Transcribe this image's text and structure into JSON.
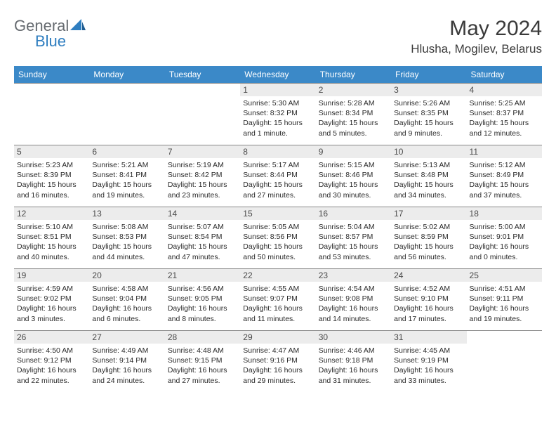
{
  "brand": {
    "name_a": "General",
    "name_b": "Blue"
  },
  "title": "May 2024",
  "location": "Hlusha, Mogilev, Belarus",
  "colors": {
    "header_bg": "#3b89c8",
    "header_text": "#ffffff",
    "daynum_bg": "#ececec",
    "border": "#888888",
    "brand_gray": "#666b70",
    "brand_blue": "#2f7ec0"
  },
  "days_of_week": [
    "Sunday",
    "Monday",
    "Tuesday",
    "Wednesday",
    "Thursday",
    "Friday",
    "Saturday"
  ],
  "leading_blanks": 3,
  "days": [
    {
      "n": 1,
      "sunrise": "5:30 AM",
      "sunset": "8:32 PM",
      "daylight": "15 hours and 1 minute."
    },
    {
      "n": 2,
      "sunrise": "5:28 AM",
      "sunset": "8:34 PM",
      "daylight": "15 hours and 5 minutes."
    },
    {
      "n": 3,
      "sunrise": "5:26 AM",
      "sunset": "8:35 PM",
      "daylight": "15 hours and 9 minutes."
    },
    {
      "n": 4,
      "sunrise": "5:25 AM",
      "sunset": "8:37 PM",
      "daylight": "15 hours and 12 minutes."
    },
    {
      "n": 5,
      "sunrise": "5:23 AM",
      "sunset": "8:39 PM",
      "daylight": "15 hours and 16 minutes."
    },
    {
      "n": 6,
      "sunrise": "5:21 AM",
      "sunset": "8:41 PM",
      "daylight": "15 hours and 19 minutes."
    },
    {
      "n": 7,
      "sunrise": "5:19 AM",
      "sunset": "8:42 PM",
      "daylight": "15 hours and 23 minutes."
    },
    {
      "n": 8,
      "sunrise": "5:17 AM",
      "sunset": "8:44 PM",
      "daylight": "15 hours and 27 minutes."
    },
    {
      "n": 9,
      "sunrise": "5:15 AM",
      "sunset": "8:46 PM",
      "daylight": "15 hours and 30 minutes."
    },
    {
      "n": 10,
      "sunrise": "5:13 AM",
      "sunset": "8:48 PM",
      "daylight": "15 hours and 34 minutes."
    },
    {
      "n": 11,
      "sunrise": "5:12 AM",
      "sunset": "8:49 PM",
      "daylight": "15 hours and 37 minutes."
    },
    {
      "n": 12,
      "sunrise": "5:10 AM",
      "sunset": "8:51 PM",
      "daylight": "15 hours and 40 minutes."
    },
    {
      "n": 13,
      "sunrise": "5:08 AM",
      "sunset": "8:53 PM",
      "daylight": "15 hours and 44 minutes."
    },
    {
      "n": 14,
      "sunrise": "5:07 AM",
      "sunset": "8:54 PM",
      "daylight": "15 hours and 47 minutes."
    },
    {
      "n": 15,
      "sunrise": "5:05 AM",
      "sunset": "8:56 PM",
      "daylight": "15 hours and 50 minutes."
    },
    {
      "n": 16,
      "sunrise": "5:04 AM",
      "sunset": "8:57 PM",
      "daylight": "15 hours and 53 minutes."
    },
    {
      "n": 17,
      "sunrise": "5:02 AM",
      "sunset": "8:59 PM",
      "daylight": "15 hours and 56 minutes."
    },
    {
      "n": 18,
      "sunrise": "5:00 AM",
      "sunset": "9:01 PM",
      "daylight": "16 hours and 0 minutes."
    },
    {
      "n": 19,
      "sunrise": "4:59 AM",
      "sunset": "9:02 PM",
      "daylight": "16 hours and 3 minutes."
    },
    {
      "n": 20,
      "sunrise": "4:58 AM",
      "sunset": "9:04 PM",
      "daylight": "16 hours and 6 minutes."
    },
    {
      "n": 21,
      "sunrise": "4:56 AM",
      "sunset": "9:05 PM",
      "daylight": "16 hours and 8 minutes."
    },
    {
      "n": 22,
      "sunrise": "4:55 AM",
      "sunset": "9:07 PM",
      "daylight": "16 hours and 11 minutes."
    },
    {
      "n": 23,
      "sunrise": "4:54 AM",
      "sunset": "9:08 PM",
      "daylight": "16 hours and 14 minutes."
    },
    {
      "n": 24,
      "sunrise": "4:52 AM",
      "sunset": "9:10 PM",
      "daylight": "16 hours and 17 minutes."
    },
    {
      "n": 25,
      "sunrise": "4:51 AM",
      "sunset": "9:11 PM",
      "daylight": "16 hours and 19 minutes."
    },
    {
      "n": 26,
      "sunrise": "4:50 AM",
      "sunset": "9:12 PM",
      "daylight": "16 hours and 22 minutes."
    },
    {
      "n": 27,
      "sunrise": "4:49 AM",
      "sunset": "9:14 PM",
      "daylight": "16 hours and 24 minutes."
    },
    {
      "n": 28,
      "sunrise": "4:48 AM",
      "sunset": "9:15 PM",
      "daylight": "16 hours and 27 minutes."
    },
    {
      "n": 29,
      "sunrise": "4:47 AM",
      "sunset": "9:16 PM",
      "daylight": "16 hours and 29 minutes."
    },
    {
      "n": 30,
      "sunrise": "4:46 AM",
      "sunset": "9:18 PM",
      "daylight": "16 hours and 31 minutes."
    },
    {
      "n": 31,
      "sunrise": "4:45 AM",
      "sunset": "9:19 PM",
      "daylight": "16 hours and 33 minutes."
    }
  ],
  "labels": {
    "sunrise": "Sunrise: ",
    "sunset": "Sunset: ",
    "daylight": "Daylight: "
  }
}
